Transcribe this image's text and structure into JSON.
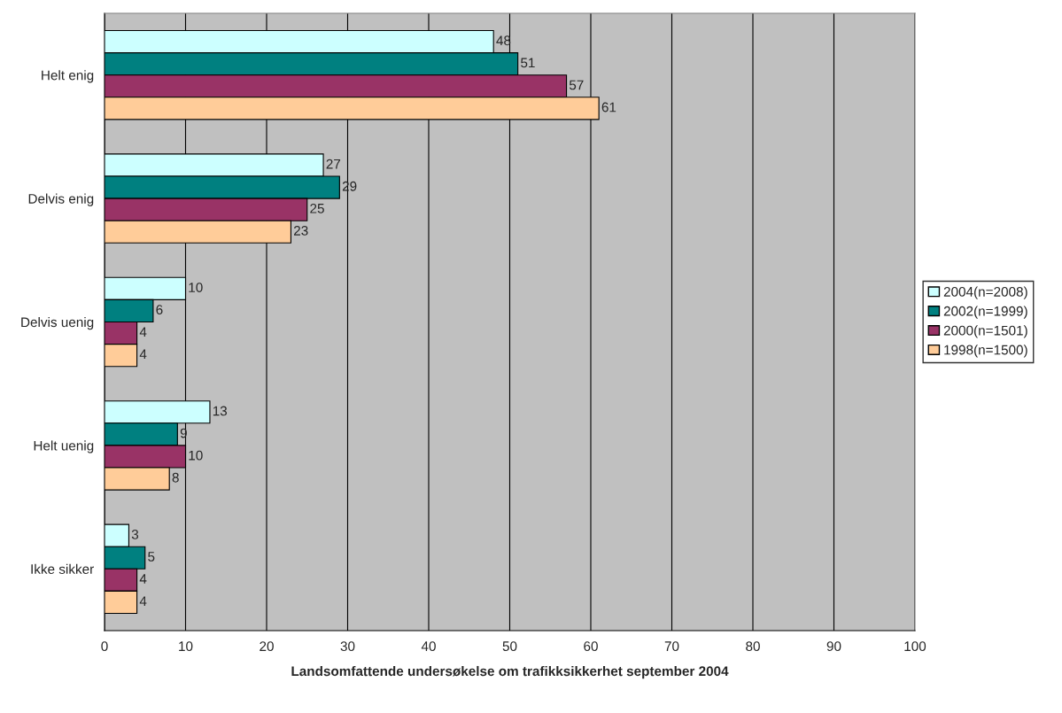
{
  "chart_data": {
    "type": "bar",
    "orientation": "horizontal",
    "xlabel": "Landsomfattende undersøkelse om trafikksikkerhet september 2004",
    "categories": [
      "Helt enig",
      "Delvis enig",
      "Delvis uenig",
      "Helt uenig",
      "Ikke sikker"
    ],
    "series": [
      {
        "name": "2004(n=2008)",
        "color": "#ccffff",
        "values": [
          48,
          27,
          10,
          13,
          3
        ]
      },
      {
        "name": "2002(n=1999)",
        "color": "#008080",
        "values": [
          51,
          29,
          6,
          9,
          5
        ]
      },
      {
        "name": "2000(n=1501)",
        "color": "#993366",
        "values": [
          57,
          25,
          4,
          10,
          4
        ]
      },
      {
        "name": "1998(n=1500)",
        "color": "#ffcc99",
        "values": [
          61,
          23,
          4,
          8,
          4
        ]
      }
    ],
    "xlim": [
      0,
      100
    ],
    "xticks": [
      0,
      10,
      20,
      30,
      40,
      50,
      60,
      70,
      80,
      90,
      100
    ],
    "grid": "x",
    "legend": "right",
    "data_labels": true
  }
}
